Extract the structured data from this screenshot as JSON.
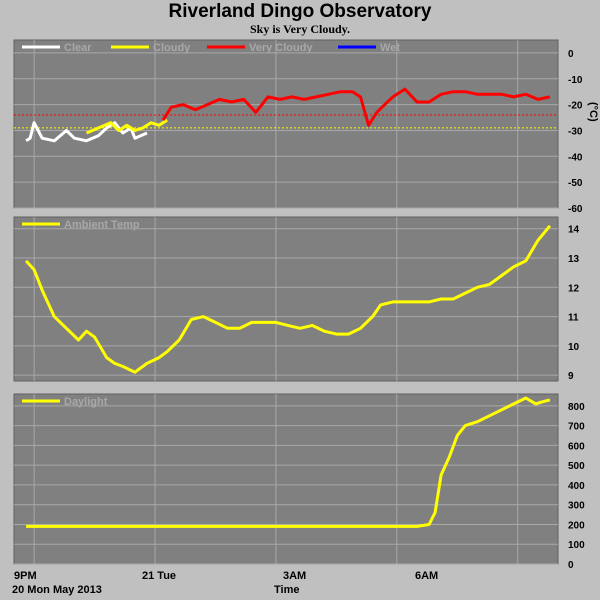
{
  "header": {
    "title": "Riverland Dingo Observatory",
    "subtitle": "Sky is Very Cloudy."
  },
  "x_axis": {
    "ticks": [
      "9PM",
      "21 Tue",
      "3AM",
      "6AM"
    ],
    "start_date": "20 Mon May 2013",
    "label": "Time"
  },
  "colors": {
    "background": "#c0c0c0",
    "panel": "#808080",
    "grid": "#a8a8a8",
    "clear": "#ffffff",
    "cloudy": "#ffff00",
    "very_cloudy": "#ff0000",
    "wet": "#0000ff"
  },
  "chart_data": [
    {
      "type": "line",
      "title": "",
      "ylabel": "(°C)",
      "ylim": [
        -60,
        5
      ],
      "y_ticks": [
        0,
        -10,
        -20,
        -30,
        -40,
        -50,
        -60
      ],
      "legend": [
        "Clear",
        "Cloudy",
        "Very Cloudy",
        "Wet"
      ],
      "legend_colors": [
        "#ffffff",
        "#ffff00",
        "#ff0000",
        "#0000ff"
      ],
      "legend_position": "top-left",
      "thresholds": [
        {
          "value": -24,
          "color": "#ff0000"
        },
        {
          "value": -29,
          "color": "#ffff00"
        }
      ],
      "series": [
        {
          "name": "Clear",
          "color": "#ffffff",
          "x": [
            20.8,
            20.9,
            21.0,
            21.2,
            21.5,
            21.8,
            22.0,
            22.3,
            22.6,
            22.8,
            23.0,
            23.2,
            23.4,
            23.5,
            23.8
          ],
          "y": [
            -34,
            -33,
            -27,
            -33,
            -34,
            -30,
            -33,
            -34,
            -32,
            -29,
            -27,
            -31,
            -29,
            -33,
            -31
          ]
        },
        {
          "name": "Cloudy",
          "color": "#ffff00",
          "x": [
            22.3,
            22.6,
            22.9,
            23.1,
            23.3,
            23.5,
            23.7,
            23.9,
            24.1,
            24.3
          ],
          "y": [
            -31,
            -29,
            -27,
            -30,
            -28,
            -30,
            -29,
            -27,
            -28,
            -26
          ]
        },
        {
          "name": "Very Cloudy",
          "color": "#ff0000",
          "x": [
            24.2,
            24.4,
            24.7,
            25.0,
            25.3,
            25.6,
            25.9,
            26.2,
            26.5,
            26.8,
            27.1,
            27.4,
            27.7,
            28.0,
            28.3,
            28.6,
            28.9,
            29.1,
            29.3,
            29.5,
            29.7,
            29.9,
            30.2,
            30.5,
            30.8,
            31.1,
            31.4,
            31.7,
            32.0,
            32.3,
            32.6,
            32.9,
            33.2,
            33.5,
            33.8
          ],
          "y": [
            -26,
            -21,
            -20,
            -22,
            -20,
            -18,
            -19,
            -18,
            -23,
            -17,
            -18,
            -17,
            -18,
            -17,
            -16,
            -15,
            -15,
            -17,
            -28,
            -23,
            -20,
            -17,
            -14,
            -19,
            -19,
            -16,
            -15,
            -15,
            -16,
            -16,
            -16,
            -17,
            -16,
            -18,
            -17
          ]
        },
        {
          "name": "Wet",
          "color": "#0000ff",
          "x": [],
          "y": []
        }
      ]
    },
    {
      "type": "line",
      "title": "",
      "ylabel": "",
      "ylim": [
        8.8,
        14.4
      ],
      "y_ticks": [
        9,
        10,
        11,
        12,
        13,
        14
      ],
      "legend": [
        "Ambient Temp"
      ],
      "legend_position": "top-left",
      "series": [
        {
          "name": "Ambient Temp",
          "color": "#ffff00",
          "x": [
            20.8,
            21.0,
            21.2,
            21.5,
            21.8,
            22.1,
            22.3,
            22.5,
            22.8,
            23.0,
            23.2,
            23.5,
            23.8,
            24.1,
            24.3,
            24.6,
            24.9,
            25.2,
            25.5,
            25.8,
            26.1,
            26.4,
            26.7,
            27.0,
            27.3,
            27.6,
            27.9,
            28.2,
            28.5,
            28.8,
            29.1,
            29.4,
            29.6,
            29.9,
            30.2,
            30.5,
            30.8,
            31.1,
            31.4,
            31.7,
            32.0,
            32.3,
            32.6,
            32.9,
            33.2,
            33.5,
            33.8
          ],
          "y": [
            12.9,
            12.6,
            11.9,
            11.0,
            10.6,
            10.2,
            10.5,
            10.3,
            9.6,
            9.4,
            9.3,
            9.1,
            9.4,
            9.6,
            9.8,
            10.2,
            10.9,
            11.0,
            10.8,
            10.6,
            10.6,
            10.8,
            10.8,
            10.8,
            10.7,
            10.6,
            10.7,
            10.5,
            10.4,
            10.4,
            10.6,
            11.0,
            11.4,
            11.5,
            11.5,
            11.5,
            11.5,
            11.6,
            11.6,
            11.8,
            12.0,
            12.1,
            12.4,
            12.7,
            12.9,
            13.6,
            14.1
          ]
        }
      ]
    },
    {
      "type": "line",
      "title": "",
      "ylabel": "",
      "ylim": [
        0,
        860
      ],
      "y_ticks": [
        0,
        100,
        200,
        300,
        400,
        500,
        600,
        700,
        800
      ],
      "legend": [
        "Daylight"
      ],
      "legend_position": "top-left",
      "series": [
        {
          "name": "Daylight",
          "color": "#ffff00",
          "x": [
            20.8,
            21.5,
            22.5,
            23.5,
            24.5,
            25.5,
            26.5,
            27.5,
            28.5,
            29.5,
            30.5,
            30.8,
            30.95,
            31.1,
            31.3,
            31.5,
            31.7,
            32.0,
            32.4,
            32.8,
            33.2,
            33.45,
            33.6,
            33.8
          ],
          "y": [
            190,
            190,
            190,
            190,
            190,
            190,
            190,
            190,
            190,
            190,
            190,
            200,
            260,
            450,
            540,
            650,
            700,
            720,
            760,
            800,
            840,
            810,
            820,
            830
          ]
        }
      ]
    }
  ]
}
